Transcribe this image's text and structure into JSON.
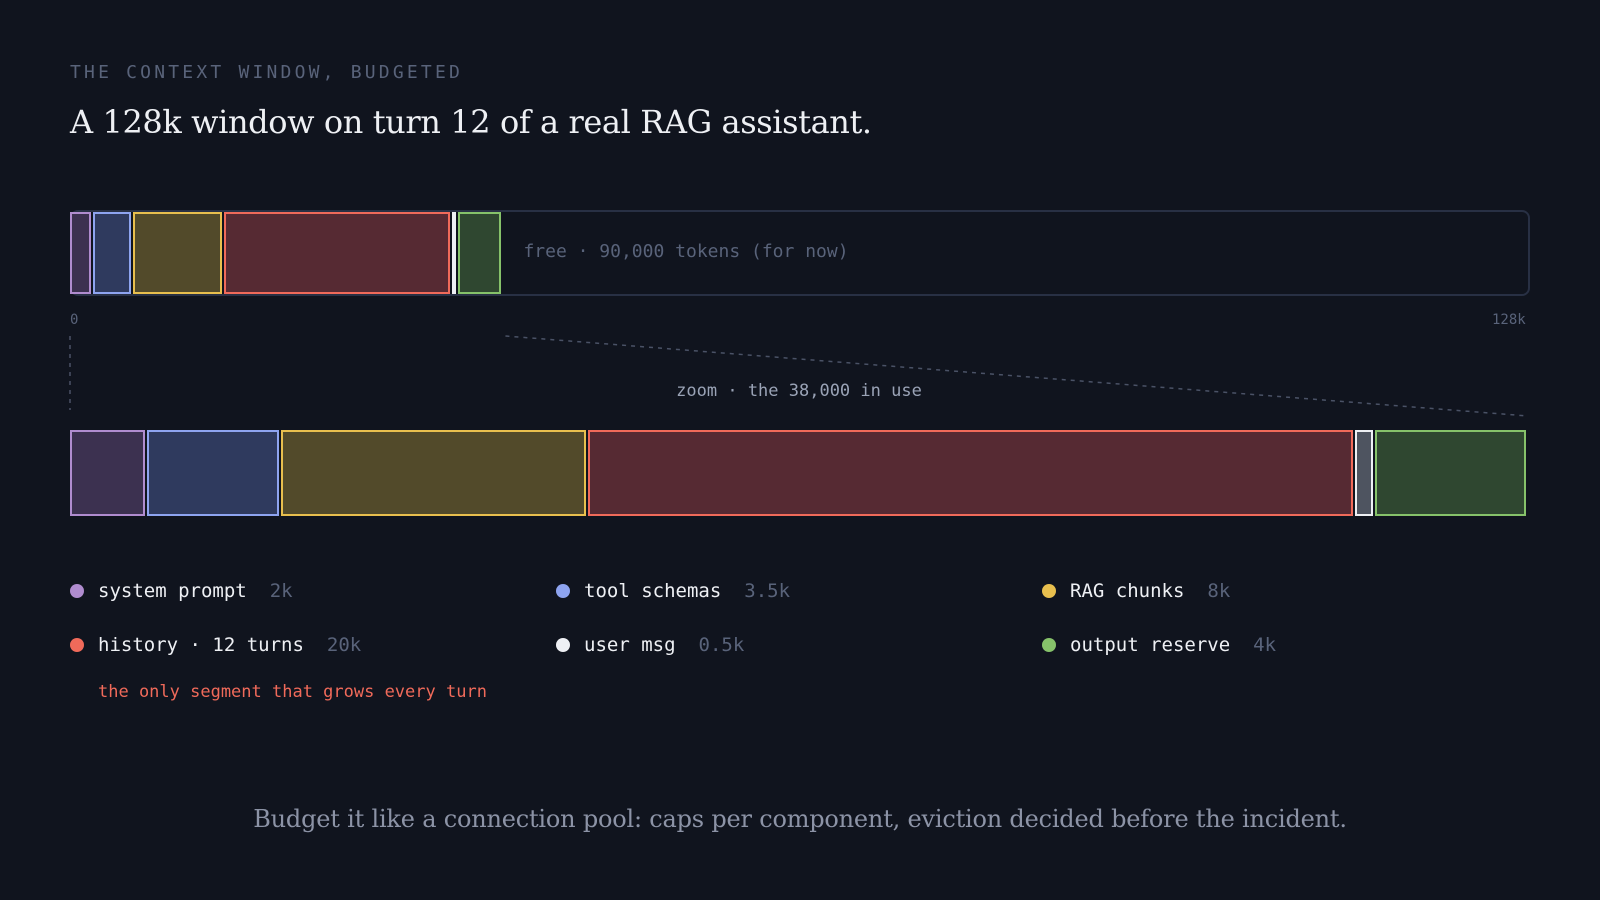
{
  "eyebrow": "THE CONTEXT WINDOW, BUDGETED",
  "headline": "A 128k window on turn 12 of a real RAG assistant.",
  "window": {
    "total_tokens": 128000,
    "used_tokens": 38000,
    "free_label": "free · 90,000 tokens (for now)",
    "axis_start_label": "0",
    "axis_end_label": "128k"
  },
  "zoom_label": "zoom · the 38,000 in use",
  "segments": [
    {
      "key": "system",
      "name": "system prompt",
      "value_label": "2k",
      "tokens": 2000,
      "color": "#b08ccf",
      "fill": "#3c3150"
    },
    {
      "key": "tools",
      "name": "tool schemas",
      "value_label": "3.5k",
      "tokens": 3500,
      "color": "#8ea4f0",
      "fill": "#2f3a5e"
    },
    {
      "key": "rag",
      "name": "RAG chunks",
      "value_label": "8k",
      "tokens": 8000,
      "color": "#e8bf4e",
      "fill": "#524a2a"
    },
    {
      "key": "history",
      "name": "history · 12 turns",
      "value_label": "20k",
      "tokens": 20000,
      "color": "#f06a5a",
      "fill": "#562a33",
      "note": "the only segment that grows every turn"
    },
    {
      "key": "user",
      "name": "user msg",
      "value_label": "0.5k",
      "tokens": 500,
      "color": "#eef0f4",
      "fill": "#4e5460"
    },
    {
      "key": "output",
      "name": "output reserve",
      "value_label": "4k",
      "tokens": 4000,
      "color": "#86c26a",
      "fill": "#2f4730"
    }
  ],
  "takeaway": "Budget it like a connection pool: caps per component, eviction decided before the incident."
}
